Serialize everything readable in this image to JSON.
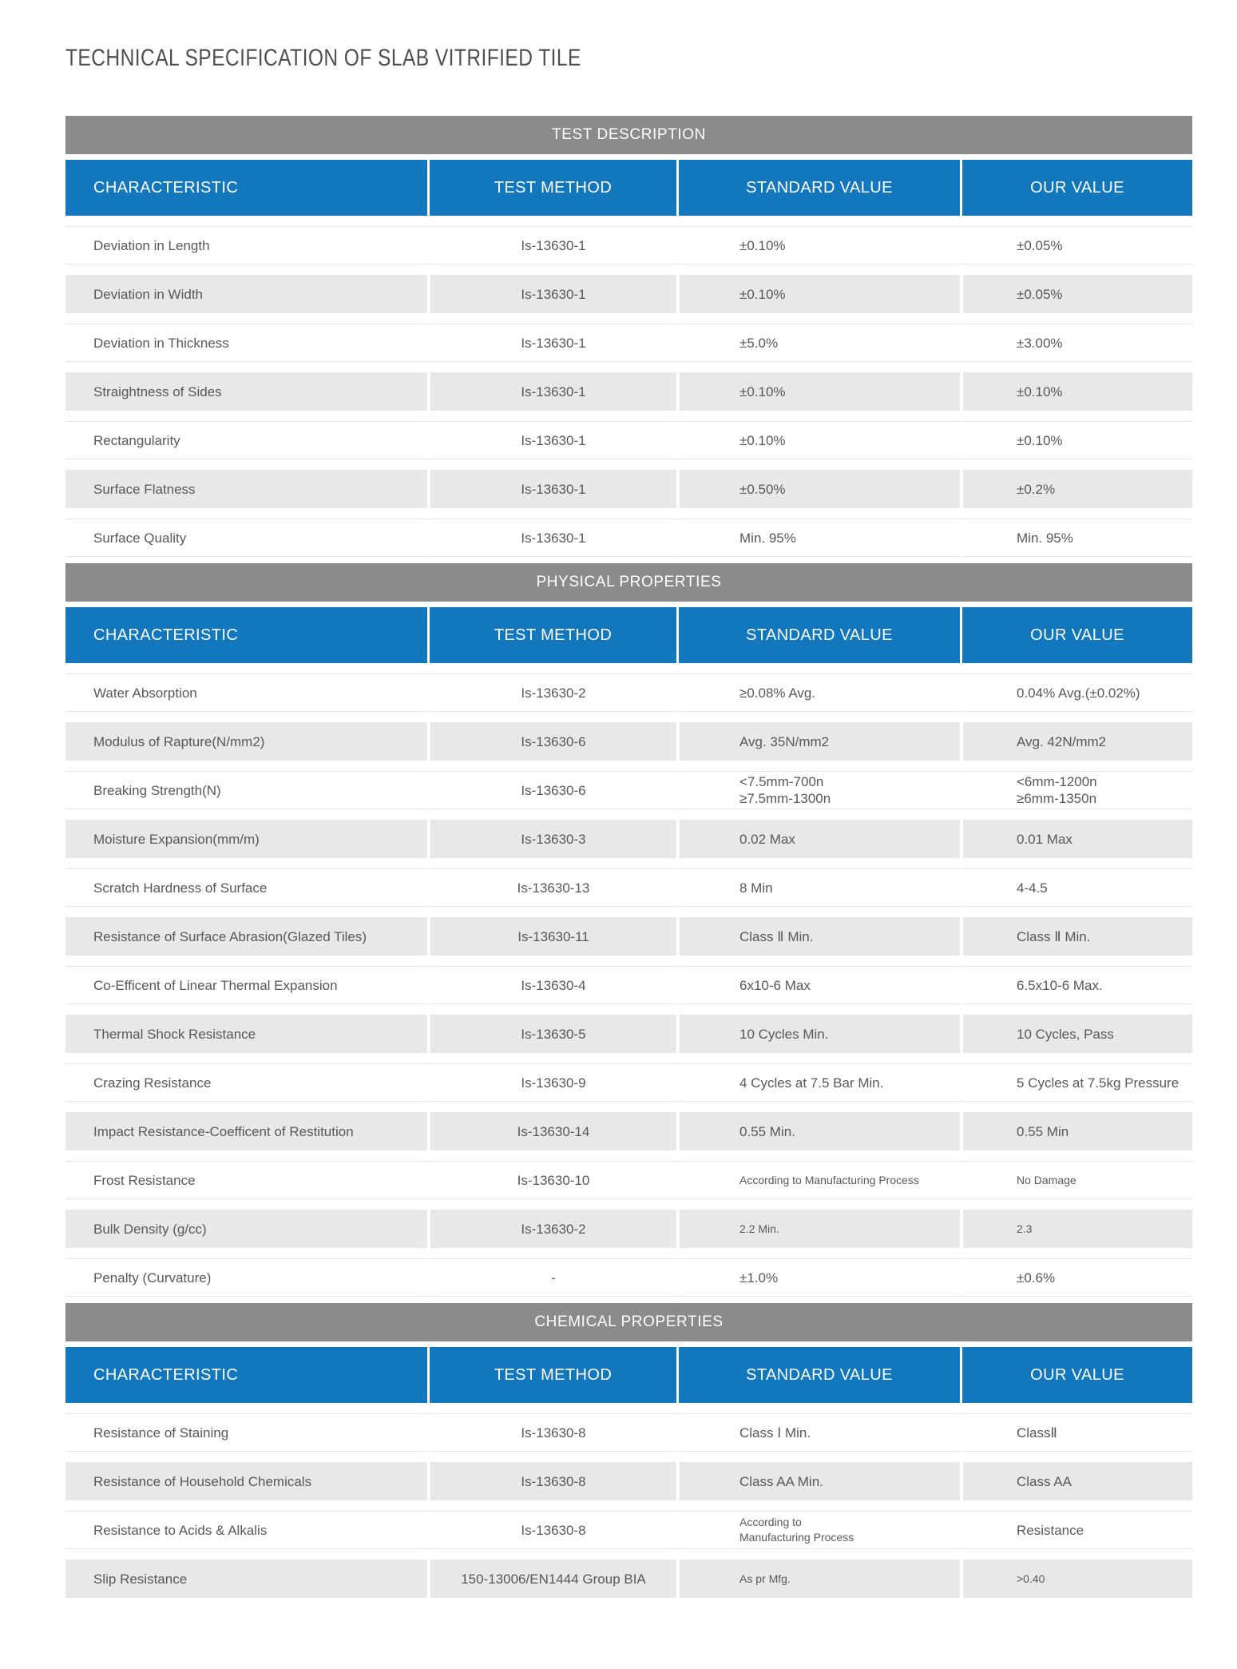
{
  "page": {
    "title": "TECHNICAL SPECIFICATION OF SLAB VITRIFIED TILE"
  },
  "colors": {
    "header_blue": "#1277bd",
    "section_bar_gray": "#8a8b8d",
    "row_alt_gray": "#e8e8ea",
    "body_text": "#57585a"
  },
  "columns": [
    "CHARACTERISTIC",
    "TEST METHOD",
    "STANDARD VALUE",
    "OUR VALUE"
  ],
  "sections": [
    {
      "title": "TEST DESCRIPTION",
      "rows": [
        [
          "Deviation in Length",
          "Is-13630-1",
          "±0.10%",
          "±0.05%"
        ],
        [
          "Deviation in Width",
          "Is-13630-1",
          "±0.10%",
          "±0.05%"
        ],
        [
          "Deviation in Thickness",
          "Is-13630-1",
          "±5.0%",
          "±3.00%"
        ],
        [
          "Straightness of Sides",
          "Is-13630-1",
          "±0.10%",
          "±0.10%"
        ],
        [
          "Rectangularity",
          "Is-13630-1",
          "±0.10%",
          "±0.10%"
        ],
        [
          "Surface Flatness",
          "Is-13630-1",
          "±0.50%",
          "±0.2%"
        ],
        [
          "Surface Quality",
          "Is-13630-1",
          "Min. 95%",
          "Min. 95%"
        ]
      ]
    },
    {
      "title": "PHYSICAL PROPERTIES",
      "rows": [
        [
          "Water Absorption",
          "Is-13630-2",
          "≥0.08% Avg.",
          "0.04% Avg.(±0.02%)"
        ],
        [
          "Modulus of Rapture(N/mm2)",
          "Is-13630-6",
          "Avg. 35N/mm2",
          "Avg. 42N/mm2"
        ],
        [
          "Breaking Strength(N)",
          "Is-13630-6",
          "<7.5mm-700n\n≥7.5mm-1300n",
          "<6mm-1200n\n≥6mm-1350n"
        ],
        [
          "Moisture Expansion(mm/m)",
          "Is-13630-3",
          "0.02 Max",
          "0.01 Max"
        ],
        [
          "Scratch Hardness of Surface",
          "Is-13630-13",
          "8 Min",
          "4-4.5"
        ],
        [
          "Resistance of Surface Abrasion(Glazed Tiles)",
          "Is-13630-11",
          "Class Ⅱ Min.",
          "Class Ⅱ Min."
        ],
        [
          "Co-Efficent of Linear Thermal Expansion",
          "Is-13630-4",
          "6x10-6 Max",
          "6.5x10-6 Max."
        ],
        [
          "Thermal Shock Resistance",
          "Is-13630-5",
          "10 Cycles Min.",
          "10 Cycles, Pass"
        ],
        [
          "Crazing Resistance",
          "Is-13630-9",
          "4 Cycles at 7.5 Bar Min.",
          "5 Cycles at 7.5kg Pressure"
        ],
        [
          "Impact Resistance-Coefficent of Restitution",
          "Is-13630-14",
          "0.55 Min.",
          "0.55 Min"
        ],
        [
          "Frost Resistance",
          "Is-13630-10",
          {
            "text": "According to Manufacturing Process",
            "small": true
          },
          {
            "text": "No Damage",
            "small": true
          }
        ],
        [
          "Bulk Density (g/cc)",
          "Is-13630-2",
          {
            "text": "2.2 Min.",
            "small": true
          },
          {
            "text": "2.3",
            "small": true
          }
        ],
        [
          "Penalty (Curvature)",
          "-",
          "±1.0%",
          "±0.6%"
        ]
      ]
    },
    {
      "title": "CHEMICAL PROPERTIES",
      "rows": [
        [
          "Resistance of Staining",
          "Is-13630-8",
          "Class Ⅰ Min.",
          "ClassⅡ"
        ],
        [
          "Resistance of Household Chemicals",
          "Is-13630-8",
          "Class AA Min.",
          "Class AA"
        ],
        [
          "Resistance to Acids & Alkalis",
          "Is-13630-8",
          {
            "text": "According to\nManufacturing Process",
            "small": true
          },
          "Resistance"
        ],
        [
          "Slip Resistance",
          "150-13006/EN1444 Group BIA",
          {
            "text": "As pr Mfg.",
            "small": true
          },
          {
            "text": ">0.40",
            "small": true
          }
        ]
      ]
    }
  ]
}
